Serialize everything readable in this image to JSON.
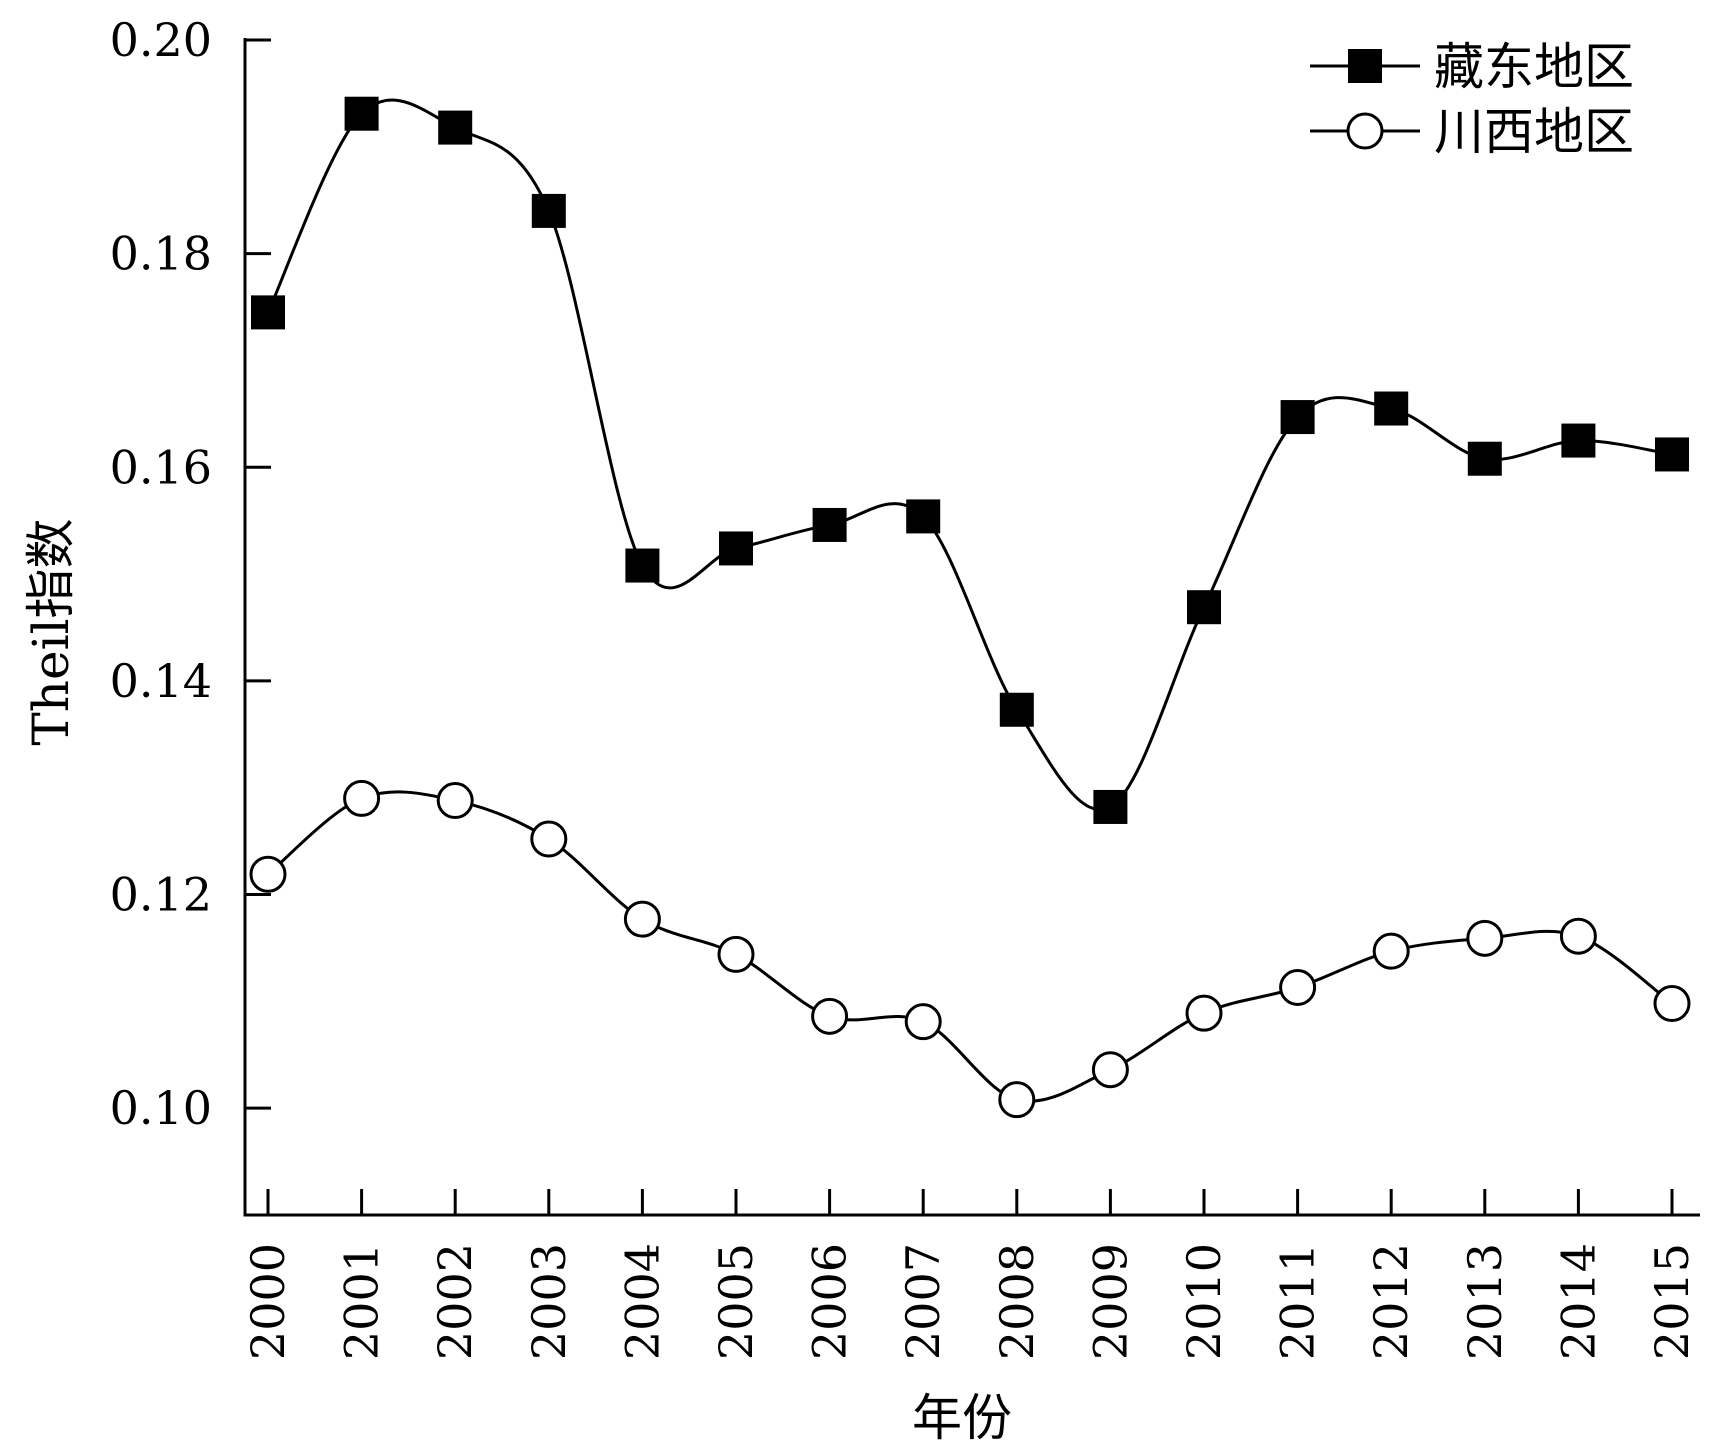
{
  "chart_data": {
    "type": "line",
    "title": "",
    "xlabel": "年份",
    "ylabel": "Theil指数",
    "x": [
      "2000",
      "2001",
      "2002",
      "2003",
      "2004",
      "2005",
      "2006",
      "2007",
      "2008",
      "2009",
      "2010",
      "2011",
      "2012",
      "2013",
      "2014",
      "2015"
    ],
    "yticks": [
      "0.10",
      "0.12",
      "0.14",
      "0.16",
      "0.18",
      "0.20"
    ],
    "ylim": [
      0.09,
      0.2
    ],
    "grid": false,
    "legend_position": "top-right",
    "series": [
      {
        "name": "藏东地区",
        "marker": "filled-square",
        "values": [
          0.1745,
          0.1931,
          0.1918,
          0.184,
          0.1508,
          0.1524,
          0.1546,
          0.1554,
          0.1373,
          0.1282,
          0.1469,
          0.1647,
          0.1655,
          0.1608,
          0.1625,
          0.1612
        ]
      },
      {
        "name": "川西地区",
        "marker": "open-circle",
        "values": [
          0.1219,
          0.129,
          0.1288,
          0.1252,
          0.1177,
          0.1144,
          0.1086,
          0.1081,
          0.1008,
          0.1036,
          0.1089,
          0.1113,
          0.1147,
          0.1159,
          0.1161,
          0.1098
        ]
      }
    ],
    "colors": {
      "line": "#000000",
      "marker_fill_open": "#ffffff",
      "marker_fill_solid": "#000000"
    }
  }
}
